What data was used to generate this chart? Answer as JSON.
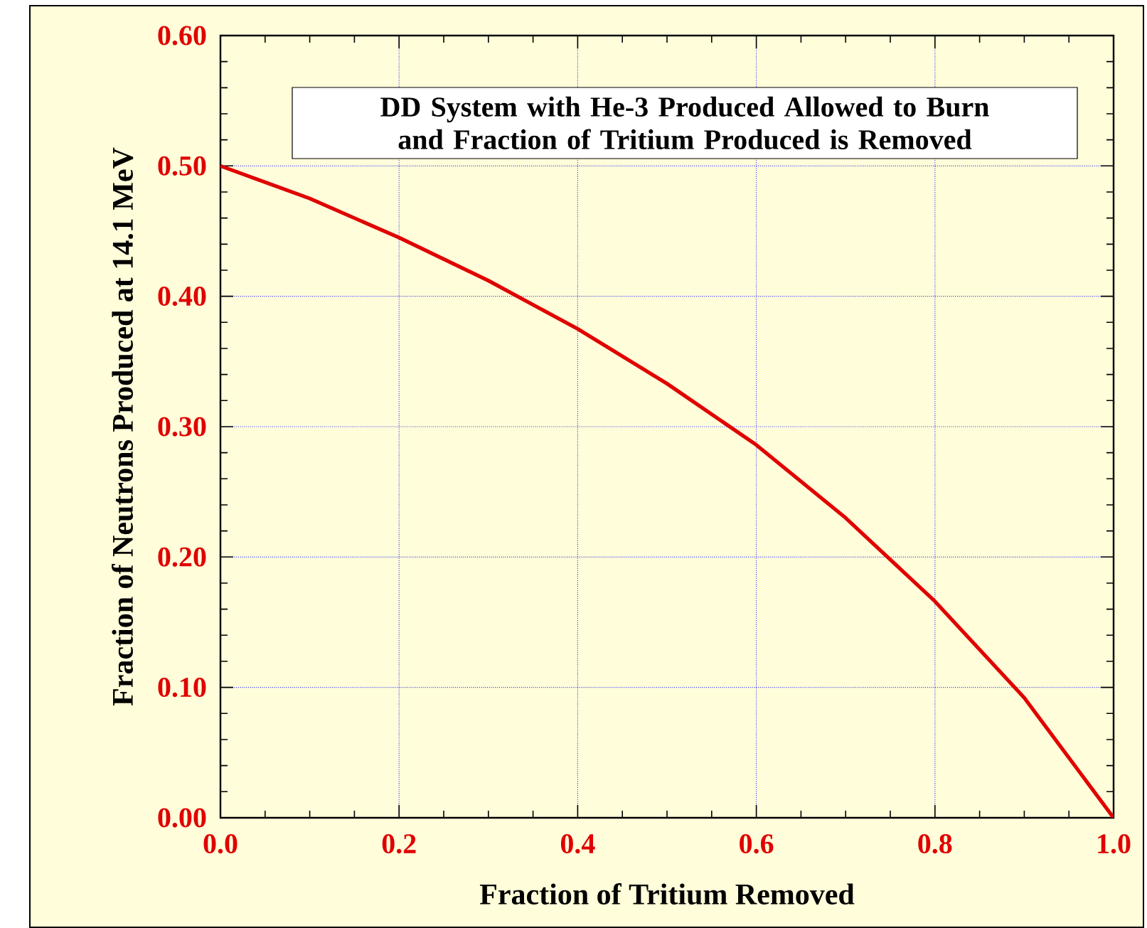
{
  "chart_data": {
    "type": "line",
    "title": "DD System with He-3 Produced Allowed to Burn and Fraction of Tritium Produced is Removed",
    "xlabel": "Fraction of Tritium Removed",
    "ylabel": "Fraction of Neutrons Produced at 14.1 MeV",
    "x": [
      0.0,
      0.1,
      0.2,
      0.3,
      0.4,
      0.5,
      0.6,
      0.7,
      0.8,
      0.9,
      1.0
    ],
    "series": [
      {
        "color": "#e00000",
        "values": [
          0.5,
          0.475,
          0.445,
          0.412,
          0.375,
          0.333,
          0.286,
          0.23,
          0.166,
          0.092,
          0.0
        ]
      }
    ],
    "xlim": [
      0.0,
      1.0
    ],
    "ylim": [
      0.0,
      0.6
    ],
    "xticks": [
      {
        "value": 0,
        "label": "0.0"
      },
      {
        "value": 0.2,
        "label": "0.2"
      },
      {
        "value": 0.4,
        "label": "0.4"
      },
      {
        "value": 0.6,
        "label": "0.6"
      },
      {
        "value": 0.8,
        "label": "0.8"
      },
      {
        "value": 1.0,
        "label": "1.0"
      }
    ],
    "yticks": [
      {
        "value": 0,
        "label": "0.00"
      },
      {
        "value": 0.1,
        "label": "0.10"
      },
      {
        "value": 0.2,
        "label": "0.20"
      },
      {
        "value": 0.3,
        "label": "0.30"
      },
      {
        "value": 0.4,
        "label": "0.40"
      },
      {
        "value": 0.5,
        "label": "0.50"
      },
      {
        "value": 0.6,
        "label": "0.60"
      }
    ],
    "grid": true,
    "marker": "none",
    "line_style": "solid"
  }
}
